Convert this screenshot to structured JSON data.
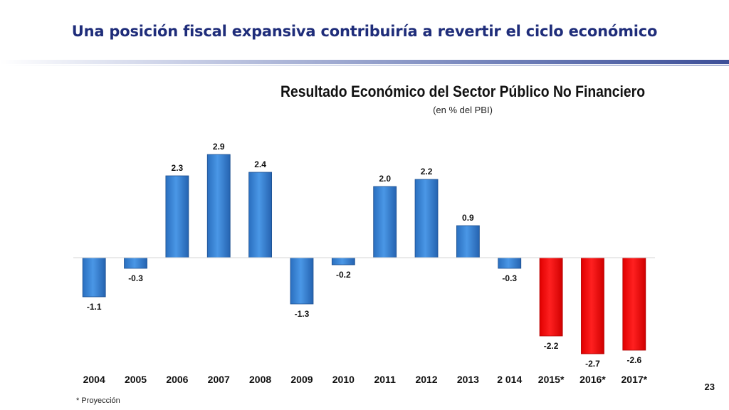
{
  "slide": {
    "title": "Una posición fiscal expansiva contribuiría a revertir el ciclo económico",
    "footnote": "* Proyección",
    "page_number": "23"
  },
  "chart_data": {
    "type": "bar",
    "title": "Resultado Económico del Sector Público No Financiero",
    "subtitle": "(en % del PBI)",
    "xlabel": "",
    "ylabel": "",
    "categories": [
      "2004",
      "2005",
      "2006",
      "2007",
      "2008",
      "2009",
      "2010",
      "2011",
      "2012",
      "2013",
      "2 014",
      "2015*",
      "2016*",
      "2017*"
    ],
    "values": [
      -1.1,
      -0.3,
      2.3,
      2.9,
      2.4,
      -1.3,
      -0.2,
      2.0,
      2.2,
      0.9,
      -0.3,
      -2.2,
      -2.7,
      -2.6
    ],
    "value_labels": [
      "-1.1",
      "-0.3",
      "2.3",
      "2.9",
      "2.4",
      "-1.3",
      "-0.2",
      "2.0",
      "2.2",
      "0.9",
      "-0.3",
      "-2.2",
      "-2.7",
      "-2.6"
    ],
    "projected": [
      false,
      false,
      false,
      false,
      false,
      false,
      false,
      false,
      false,
      false,
      false,
      true,
      true,
      true
    ],
    "colors": {
      "actual": "#3b86d6",
      "projected": "#ff0000"
    },
    "ylim": [
      -2.9,
      3.2
    ],
    "grid": false,
    "legend": "none"
  }
}
